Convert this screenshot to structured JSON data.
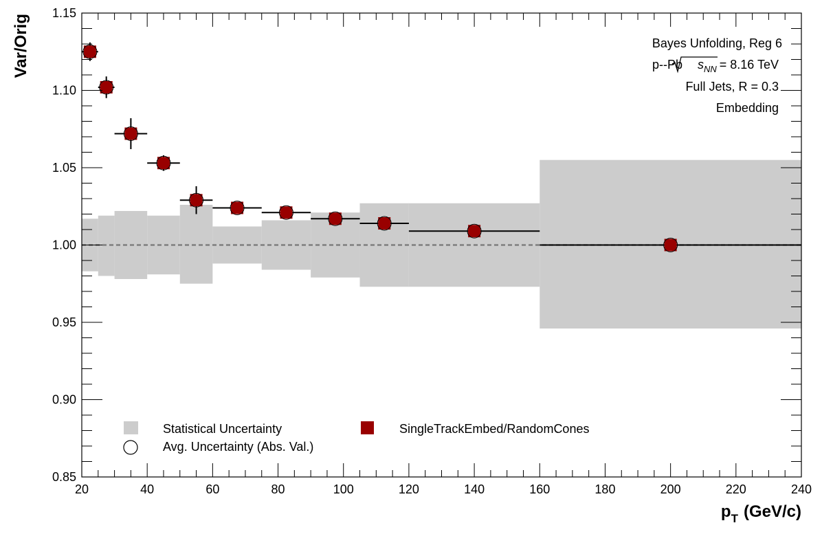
{
  "chart_data": {
    "type": "scatter",
    "xlabel": "p",
    "xlabel_sub": "T",
    "xlabel_units": "(GeV/c)",
    "ylabel": "Var/Orig",
    "xlim": [
      20,
      240
    ],
    "ylim": [
      0.85,
      1.15
    ],
    "x_ticks": [
      "20",
      "40",
      "60",
      "80",
      "100",
      "120",
      "140",
      "160",
      "180",
      "200",
      "220",
      "240"
    ],
    "y_ticks": [
      "0.85",
      "0.90",
      "0.95",
      "1.00",
      "1.05",
      "1.10",
      "1.15"
    ],
    "grid": false,
    "reference_line": 1.0,
    "annotations": {
      "line1": "Bayes Unfolding, Reg 6",
      "line2_pre": "p--Pb",
      "line2_s": "s",
      "line2_sub": "NN",
      "line2_post": "= 8.16 TeV",
      "line3": "Full Jets, R = 0.3",
      "line4": "Embedding"
    },
    "legend": {
      "stat_label": "Statistical Uncertainty",
      "avg_label": "Avg. Uncertainty (Abs. Val.)",
      "series_label": "SingleTrackEmbed/RandomCones",
      "placement": "bottom-left"
    },
    "colors": {
      "marker": "#990000",
      "band": "#cccccc",
      "reference": "#7f7f7f"
    },
    "stat_bands": [
      {
        "x0": 20,
        "x1": 25,
        "lo": 0.983,
        "hi": 1.017
      },
      {
        "x0": 25,
        "x1": 30,
        "lo": 0.98,
        "hi": 1.019
      },
      {
        "x0": 30,
        "x1": 40,
        "lo": 0.978,
        "hi": 1.022
      },
      {
        "x0": 40,
        "x1": 50,
        "lo": 0.981,
        "hi": 1.019
      },
      {
        "x0": 50,
        "x1": 60,
        "lo": 0.975,
        "hi": 1.026
      },
      {
        "x0": 60,
        "x1": 75,
        "lo": 0.988,
        "hi": 1.012
      },
      {
        "x0": 75,
        "x1": 90,
        "lo": 0.984,
        "hi": 1.016
      },
      {
        "x0": 90,
        "x1": 105,
        "lo": 0.979,
        "hi": 1.021
      },
      {
        "x0": 105,
        "x1": 120,
        "lo": 0.973,
        "hi": 1.027
      },
      {
        "x0": 120,
        "x1": 160,
        "lo": 0.973,
        "hi": 1.027
      },
      {
        "x0": 160,
        "x1": 240,
        "lo": 0.946,
        "hi": 1.055
      }
    ],
    "series": [
      {
        "points": [
          {
            "x": 22.5,
            "y": 1.125,
            "xlo": 20,
            "xhi": 25,
            "yerr": 0.006
          },
          {
            "x": 27.5,
            "y": 1.102,
            "xlo": 25,
            "xhi": 30,
            "yerr": 0.007
          },
          {
            "x": 35,
            "y": 1.072,
            "xlo": 30,
            "xhi": 40,
            "yerr": 0.01
          },
          {
            "x": 45,
            "y": 1.053,
            "xlo": 40,
            "xhi": 50,
            "yerr": 0.005
          },
          {
            "x": 55,
            "y": 1.029,
            "xlo": 50,
            "xhi": 60,
            "yerr": 0.009
          },
          {
            "x": 67.5,
            "y": 1.024,
            "xlo": 60,
            "xhi": 75,
            "yerr": 0.004
          },
          {
            "x": 82.5,
            "y": 1.021,
            "xlo": 75,
            "xhi": 90,
            "yerr": 0.003
          },
          {
            "x": 97.5,
            "y": 1.017,
            "xlo": 90,
            "xhi": 105,
            "yerr": 0.003
          },
          {
            "x": 112.5,
            "y": 1.014,
            "xlo": 105,
            "xhi": 120,
            "yerr": 0.003
          },
          {
            "x": 140,
            "y": 1.009,
            "xlo": 120,
            "xhi": 160,
            "yerr": 0.002
          },
          {
            "x": 200,
            "y": 1.0,
            "xlo": 160,
            "xhi": 240,
            "yerr": 0.002
          }
        ]
      }
    ]
  }
}
